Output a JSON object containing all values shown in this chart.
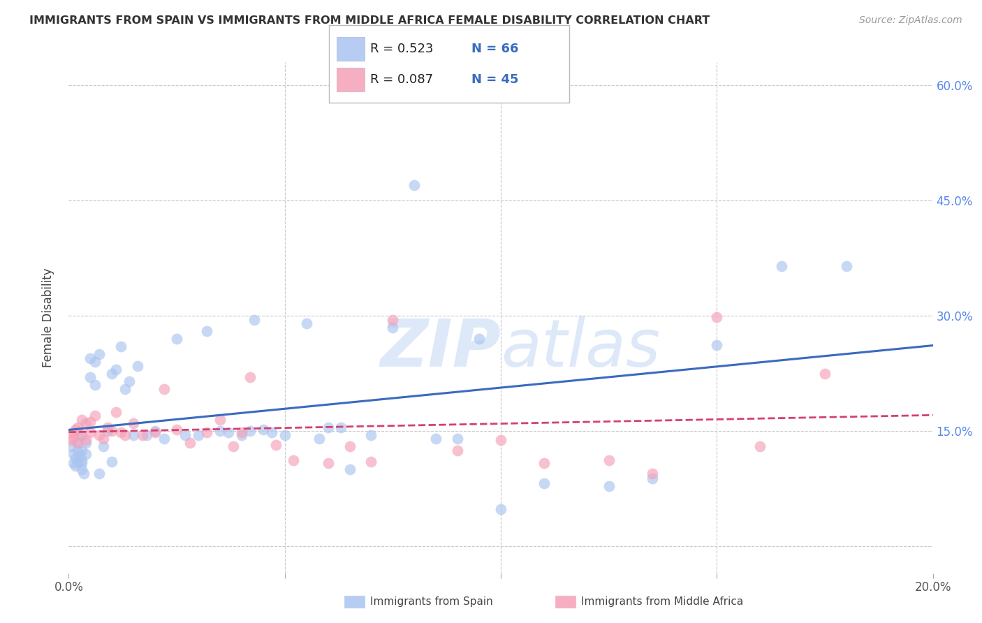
{
  "title": "IMMIGRANTS FROM SPAIN VS IMMIGRANTS FROM MIDDLE AFRICA FEMALE DISABILITY CORRELATION CHART",
  "source": "Source: ZipAtlas.com",
  "ylabel": "Female Disability",
  "xlim": [
    0.0,
    0.2
  ],
  "ylim": [
    -0.035,
    0.63
  ],
  "legend_r1": "R = 0.523",
  "legend_n1": "N = 66",
  "legend_r2": "R = 0.087",
  "legend_n2": "N = 45",
  "label1": "Immigrants from Spain",
  "label2": "Immigrants from Middle Africa",
  "color1": "#aac4f0",
  "color2": "#f5a0b8",
  "trendline1_color": "#3a6bbf",
  "trendline2_color": "#d44070",
  "watermark_color": "#dde8f8",
  "spain_x": [
    0.0005,
    0.001,
    0.001,
    0.0015,
    0.0015,
    0.002,
    0.002,
    0.002,
    0.0025,
    0.0025,
    0.003,
    0.003,
    0.003,
    0.003,
    0.0035,
    0.004,
    0.004,
    0.005,
    0.005,
    0.006,
    0.006,
    0.007,
    0.007,
    0.008,
    0.009,
    0.01,
    0.01,
    0.011,
    0.012,
    0.013,
    0.014,
    0.015,
    0.016,
    0.018,
    0.02,
    0.022,
    0.025,
    0.027,
    0.03,
    0.032,
    0.035,
    0.037,
    0.04,
    0.042,
    0.043,
    0.045,
    0.047,
    0.05,
    0.055,
    0.058,
    0.06,
    0.063,
    0.065,
    0.07,
    0.075,
    0.08,
    0.085,
    0.09,
    0.095,
    0.1,
    0.11,
    0.125,
    0.135,
    0.15,
    0.165,
    0.18
  ],
  "spain_y": [
    0.13,
    0.12,
    0.108,
    0.115,
    0.105,
    0.11,
    0.125,
    0.135,
    0.145,
    0.118,
    0.1,
    0.112,
    0.125,
    0.108,
    0.095,
    0.135,
    0.12,
    0.245,
    0.22,
    0.21,
    0.24,
    0.25,
    0.095,
    0.13,
    0.15,
    0.11,
    0.225,
    0.23,
    0.26,
    0.205,
    0.215,
    0.145,
    0.235,
    0.145,
    0.15,
    0.14,
    0.27,
    0.145,
    0.145,
    0.28,
    0.15,
    0.148,
    0.145,
    0.15,
    0.295,
    0.152,
    0.148,
    0.145,
    0.29,
    0.14,
    0.155,
    0.155,
    0.1,
    0.145,
    0.285,
    0.47,
    0.14,
    0.14,
    0.27,
    0.048,
    0.082,
    0.078,
    0.088,
    0.262,
    0.365,
    0.365
  ],
  "africa_x": [
    0.0005,
    0.001,
    0.001,
    0.0015,
    0.002,
    0.002,
    0.003,
    0.003,
    0.004,
    0.004,
    0.005,
    0.005,
    0.006,
    0.007,
    0.008,
    0.009,
    0.01,
    0.011,
    0.012,
    0.013,
    0.015,
    0.017,
    0.02,
    0.022,
    0.025,
    0.028,
    0.032,
    0.035,
    0.038,
    0.04,
    0.042,
    0.048,
    0.052,
    0.06,
    0.065,
    0.07,
    0.075,
    0.09,
    0.1,
    0.11,
    0.125,
    0.135,
    0.15,
    0.16,
    0.175
  ],
  "africa_y": [
    0.138,
    0.142,
    0.148,
    0.152,
    0.155,
    0.135,
    0.165,
    0.145,
    0.16,
    0.138,
    0.148,
    0.162,
    0.17,
    0.145,
    0.14,
    0.155,
    0.15,
    0.175,
    0.148,
    0.145,
    0.16,
    0.145,
    0.148,
    0.205,
    0.152,
    0.135,
    0.148,
    0.165,
    0.13,
    0.148,
    0.22,
    0.132,
    0.112,
    0.108,
    0.13,
    0.11,
    0.295,
    0.125,
    0.138,
    0.108,
    0.112,
    0.095,
    0.298,
    0.13,
    0.225
  ],
  "gridline_color": "#c8c8c8",
  "gridline_yticks": [
    0.0,
    0.15,
    0.3,
    0.45,
    0.6
  ],
  "gridline_xticks": [
    0.05,
    0.1,
    0.15
  ],
  "ytick_labels": [
    "",
    "15.0%",
    "30.0%",
    "45.0%",
    "60.0%"
  ],
  "xtick_labels": [
    "0.0%",
    "",
    "",
    "",
    "20.0%"
  ]
}
